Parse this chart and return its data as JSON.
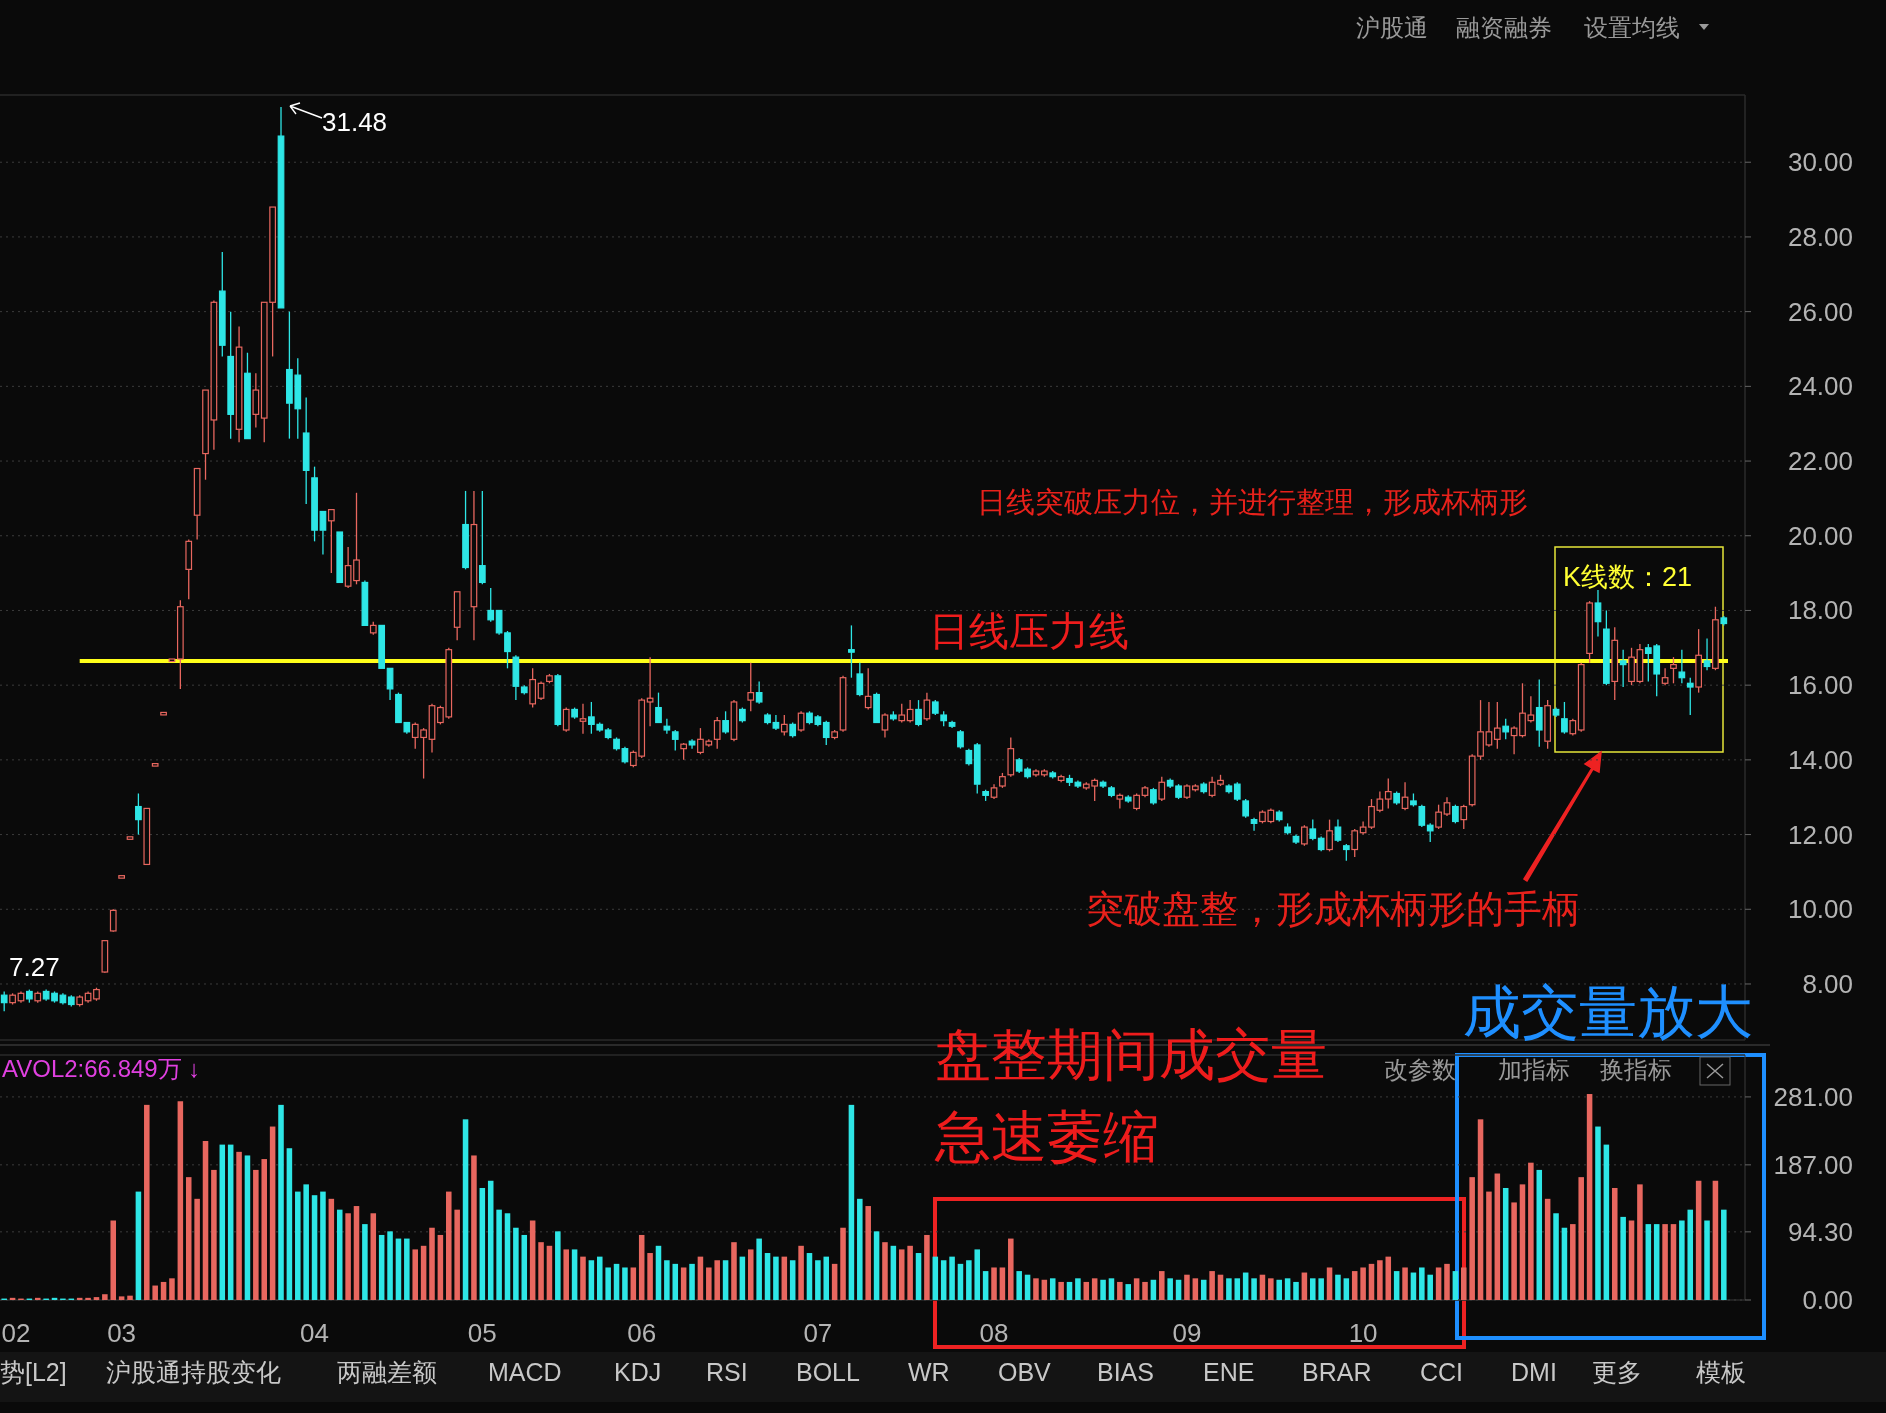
{
  "chart_data": [
    {
      "type": "candlestick",
      "tick_labels": "y",
      "grid": "y",
      "categories": [
        null,
        null,
        null,
        null,
        null,
        null,
        null,
        null,
        null,
        null,
        null,
        null,
        null,
        null,
        null,
        null,
        null,
        null,
        null,
        null,
        null,
        null,
        null,
        null,
        null,
        null,
        null,
        null,
        null,
        null,
        null,
        null,
        null,
        null,
        null,
        null,
        null,
        null,
        null,
        null,
        null,
        null,
        null,
        null,
        null,
        null,
        null,
        null,
        null,
        null,
        null,
        null,
        null,
        null,
        null,
        null,
        null,
        null,
        null,
        null,
        null,
        null,
        null,
        null,
        null,
        null,
        null,
        null,
        null,
        null,
        null,
        null,
        null,
        null,
        null,
        null,
        null,
        null,
        null,
        null,
        null,
        null,
        null,
        null,
        null,
        null,
        null,
        null,
        null,
        null,
        null,
        null,
        null,
        null,
        null,
        null,
        null,
        null,
        null,
        null,
        null,
        null,
        null,
        null,
        null,
        null,
        null,
        null,
        null,
        null,
        null,
        null,
        null,
        null,
        null,
        null,
        null,
        null,
        null,
        null,
        null,
        null,
        null,
        null,
        null,
        null,
        null,
        null,
        null,
        null,
        null,
        null,
        null,
        null,
        null,
        null,
        null,
        null,
        null,
        null,
        null,
        null,
        null,
        null,
        null,
        null,
        null,
        null,
        null,
        null,
        null,
        null,
        null,
        null,
        null,
        null,
        null,
        null,
        null,
        null,
        null,
        null,
        null,
        null,
        null,
        null,
        null,
        null,
        null,
        null,
        null,
        null,
        null,
        null,
        null,
        null,
        null,
        null,
        null,
        null,
        null,
        null,
        null,
        null,
        null,
        null,
        null,
        null,
        null,
        null,
        null,
        null,
        null,
        null,
        null,
        null,
        null,
        null,
        null,
        null,
        null,
        null,
        null,
        null,
        null,
        null
      ],
      "ohlc": [
        [
          7.7,
          7.8,
          7.27,
          7.5
        ],
        [
          7.5,
          7.75,
          7.45,
          7.7
        ],
        [
          7.55,
          7.8,
          7.5,
          7.75
        ],
        [
          7.8,
          7.85,
          7.5,
          7.6
        ],
        [
          7.55,
          7.8,
          7.5,
          7.75
        ],
        [
          7.8,
          7.85,
          7.55,
          7.6
        ],
        [
          7.75,
          7.8,
          7.5,
          7.55
        ],
        [
          7.7,
          7.75,
          7.45,
          7.5
        ],
        [
          7.65,
          7.7,
          7.4,
          7.45
        ],
        [
          7.45,
          7.7,
          7.4,
          7.65
        ],
        [
          7.55,
          7.8,
          7.5,
          7.75
        ],
        [
          7.6,
          7.9,
          7.55,
          7.85
        ],
        [
          8.32,
          9.16,
          8.3,
          9.16
        ],
        [
          9.42,
          10.0,
          9.4,
          9.97
        ],
        [
          10.9,
          10.9,
          10.9,
          10.9
        ],
        [
          11.94,
          11.94,
          11.94,
          11.94
        ],
        [
          12.75,
          13.1,
          12.0,
          12.4
        ],
        [
          11.2,
          12.7,
          11.2,
          12.7
        ],
        [
          13.9,
          13.9,
          13.9,
          13.9
        ],
        [
          15.27,
          15.27,
          15.27,
          15.27
        ],
        [
          16.7,
          16.7,
          16.7,
          16.7
        ],
        [
          16.7,
          18.27,
          15.9,
          18.1
        ],
        [
          19.1,
          19.9,
          18.3,
          19.85
        ],
        [
          20.55,
          21.8,
          19.9,
          21.8
        ],
        [
          22.2,
          23.9,
          21.5,
          23.9
        ],
        [
          23.1,
          26.3,
          22.3,
          26.25
        ],
        [
          26.55,
          27.6,
          24.8,
          25.1
        ],
        [
          24.8,
          26.0,
          22.6,
          23.25
        ],
        [
          22.85,
          25.6,
          22.5,
          25.05
        ],
        [
          24.35,
          24.9,
          22.6,
          22.6
        ],
        [
          23.25,
          24.35,
          22.9,
          23.9
        ],
        [
          23.15,
          26.25,
          22.5,
          26.25
        ],
        [
          26.25,
          28.8,
          24.8,
          28.8
        ],
        [
          30.7,
          31.48,
          26.1,
          26.1
        ],
        [
          24.45,
          26.0,
          22.6,
          23.55
        ],
        [
          24.3,
          24.75,
          22.6,
          23.4
        ],
        [
          22.75,
          23.7,
          20.85,
          21.75
        ],
        [
          21.55,
          21.85,
          19.85,
          20.15
        ],
        [
          20.65,
          20.65,
          19.5,
          20.15
        ],
        [
          20.4,
          20.7,
          19.0,
          20.7
        ],
        [
          20.1,
          20.1,
          18.75,
          18.75
        ],
        [
          18.65,
          19.7,
          18.6,
          19.2
        ],
        [
          18.8,
          21.15,
          18.7,
          19.35
        ],
        [
          18.75,
          18.8,
          17.6,
          17.6
        ],
        [
          17.4,
          17.7,
          17.35,
          17.6
        ],
        [
          17.6,
          17.6,
          16.45,
          16.45
        ],
        [
          16.45,
          16.45,
          15.6,
          15.9
        ],
        [
          15.75,
          15.8,
          15.0,
          15.0
        ],
        [
          15.0,
          15.0,
          14.7,
          14.75
        ],
        [
          14.6,
          15.0,
          14.3,
          14.95
        ],
        [
          14.6,
          14.85,
          13.5,
          14.8
        ],
        [
          14.55,
          15.5,
          14.2,
          15.45
        ],
        [
          15.0,
          15.45,
          14.95,
          15.4
        ],
        [
          15.15,
          17.0,
          15.1,
          16.95
        ],
        [
          17.55,
          18.5,
          17.2,
          18.5
        ],
        [
          20.3,
          21.2,
          19.1,
          19.15
        ],
        [
          18.1,
          21.2,
          17.2,
          20.3
        ],
        [
          19.2,
          21.2,
          18.7,
          18.75
        ],
        [
          18.0,
          18.6,
          17.7,
          17.75
        ],
        [
          18.0,
          18.0,
          17.35,
          17.4
        ],
        [
          17.4,
          17.45,
          16.45,
          16.9
        ],
        [
          16.75,
          16.8,
          15.6,
          15.97
        ],
        [
          15.95,
          16.0,
          15.75,
          15.8
        ],
        [
          15.5,
          16.45,
          15.4,
          16.15
        ],
        [
          15.65,
          16.1,
          15.6,
          16.05
        ],
        [
          16.1,
          16.3,
          16.05,
          16.25
        ],
        [
          16.25,
          16.3,
          14.9,
          14.95
        ],
        [
          14.8,
          15.4,
          14.75,
          15.35
        ],
        [
          15.35,
          15.4,
          15.1,
          15.15
        ],
        [
          15.05,
          15.5,
          14.7,
          15.1
        ],
        [
          15.15,
          15.55,
          14.7,
          14.95
        ],
        [
          14.95,
          15.0,
          14.75,
          14.8
        ],
        [
          14.8,
          14.85,
          14.55,
          14.6
        ],
        [
          14.55,
          14.6,
          14.25,
          14.3
        ],
        [
          14.3,
          14.35,
          13.9,
          13.95
        ],
        [
          13.85,
          14.25,
          13.8,
          14.2
        ],
        [
          14.1,
          15.65,
          14.05,
          15.6
        ],
        [
          15.55,
          16.75,
          14.9,
          15.65
        ],
        [
          15.4,
          15.8,
          15.0,
          15.0
        ],
        [
          14.9,
          15.1,
          14.7,
          14.8
        ],
        [
          14.75,
          14.8,
          14.25,
          14.55
        ],
        [
          14.3,
          14.45,
          14.0,
          14.42
        ],
        [
          14.5,
          14.55,
          14.3,
          14.4
        ],
        [
          14.2,
          14.85,
          14.15,
          14.55
        ],
        [
          14.4,
          14.55,
          14.35,
          14.5
        ],
        [
          14.55,
          15.15,
          14.3,
          15.05
        ],
        [
          15.05,
          15.3,
          14.7,
          14.75
        ],
        [
          14.55,
          15.6,
          14.5,
          15.55
        ],
        [
          15.35,
          15.4,
          15.0,
          15.05
        ],
        [
          15.6,
          16.6,
          15.3,
          15.8
        ],
        [
          15.8,
          16.1,
          15.5,
          15.55
        ],
        [
          15.2,
          15.25,
          14.95,
          15.0
        ],
        [
          15.0,
          15.2,
          14.8,
          14.85
        ],
        [
          14.75,
          15.2,
          14.65,
          14.95
        ],
        [
          14.95,
          15.0,
          14.6,
          14.65
        ],
        [
          14.8,
          15.3,
          14.75,
          15.25
        ],
        [
          15.25,
          15.3,
          14.95,
          15.0
        ],
        [
          15.15,
          15.2,
          14.9,
          14.95
        ],
        [
          15.0,
          15.05,
          14.4,
          14.6
        ],
        [
          14.6,
          14.8,
          14.55,
          14.75
        ],
        [
          14.8,
          16.25,
          14.75,
          16.2
        ],
        [
          16.95,
          17.6,
          16.2,
          16.9
        ],
        [
          16.3,
          16.6,
          15.7,
          15.75
        ],
        [
          15.4,
          16.45,
          15.35,
          15.7
        ],
        [
          15.75,
          15.8,
          15.0,
          15.0
        ],
        [
          14.8,
          15.25,
          14.6,
          15.2
        ],
        [
          15.2,
          15.3,
          15.05,
          15.1
        ],
        [
          15.05,
          15.5,
          15.0,
          15.2
        ],
        [
          15.05,
          15.6,
          15.0,
          15.35
        ],
        [
          15.35,
          15.6,
          14.9,
          14.95
        ],
        [
          15.1,
          15.8,
          15.05,
          15.6
        ],
        [
          15.55,
          15.6,
          15.2,
          15.25
        ],
        [
          15.2,
          15.3,
          14.9,
          15.05
        ],
        [
          15.0,
          15.05,
          14.85,
          14.9
        ],
        [
          14.75,
          14.8,
          14.3,
          14.35
        ],
        [
          14.25,
          14.3,
          13.85,
          13.9
        ],
        [
          14.4,
          14.45,
          13.1,
          13.35
        ],
        [
          13.15,
          13.2,
          12.9,
          13.05
        ],
        [
          13.0,
          13.35,
          12.95,
          13.25
        ],
        [
          13.3,
          13.65,
          13.25,
          13.55
        ],
        [
          13.6,
          14.6,
          13.55,
          14.3
        ],
        [
          14.0,
          14.05,
          13.65,
          13.7
        ],
        [
          13.75,
          13.8,
          13.5,
          13.55
        ],
        [
          13.6,
          13.75,
          13.55,
          13.7
        ],
        [
          13.6,
          13.75,
          13.55,
          13.7
        ],
        [
          13.65,
          13.7,
          13.5,
          13.55
        ],
        [
          13.45,
          13.6,
          13.4,
          13.55
        ],
        [
          13.5,
          13.6,
          13.3,
          13.4
        ],
        [
          13.4,
          13.45,
          13.25,
          13.3
        ],
        [
          13.25,
          13.4,
          13.2,
          13.35
        ],
        [
          13.3,
          13.5,
          12.9,
          13.45
        ],
        [
          13.4,
          13.45,
          13.25,
          13.3
        ],
        [
          13.25,
          13.3,
          13.0,
          13.05
        ],
        [
          12.95,
          13.1,
          12.7,
          13.05
        ],
        [
          13.0,
          13.05,
          12.85,
          12.9
        ],
        [
          12.7,
          13.1,
          12.65,
          13.05
        ],
        [
          13.05,
          13.3,
          13.0,
          13.25
        ],
        [
          13.2,
          13.25,
          12.8,
          12.85
        ],
        [
          12.95,
          13.55,
          12.9,
          13.4
        ],
        [
          13.45,
          13.5,
          13.25,
          13.3
        ],
        [
          13.3,
          13.35,
          12.95,
          13.0
        ],
        [
          13.0,
          13.35,
          12.95,
          13.3
        ],
        [
          13.2,
          13.35,
          13.15,
          13.3
        ],
        [
          13.35,
          13.4,
          13.1,
          13.15
        ],
        [
          13.05,
          13.55,
          13.0,
          13.4
        ],
        [
          13.35,
          13.6,
          13.3,
          13.45
        ],
        [
          13.3,
          13.35,
          13.1,
          13.15
        ],
        [
          13.35,
          13.4,
          12.9,
          12.95
        ],
        [
          12.9,
          12.95,
          12.45,
          12.5
        ],
        [
          12.4,
          12.45,
          12.1,
          12.3
        ],
        [
          12.35,
          12.65,
          12.3,
          12.6
        ],
        [
          12.35,
          12.7,
          12.3,
          12.65
        ],
        [
          12.6,
          12.65,
          12.35,
          12.4
        ],
        [
          12.2,
          12.3,
          12.0,
          12.05
        ],
        [
          11.95,
          12.0,
          11.75,
          11.8
        ],
        [
          11.75,
          12.25,
          11.7,
          12.2
        ],
        [
          12.15,
          12.4,
          11.85,
          11.9
        ],
        [
          11.9,
          11.95,
          11.55,
          11.6
        ],
        [
          11.6,
          12.4,
          11.55,
          12.1
        ],
        [
          12.2,
          12.4,
          11.8,
          11.85
        ],
        [
          11.7,
          11.75,
          11.3,
          11.6
        ],
        [
          11.6,
          12.15,
          11.4,
          12.1
        ],
        [
          12.05,
          12.35,
          12.0,
          12.2
        ],
        [
          12.2,
          12.95,
          12.15,
          12.75
        ],
        [
          12.65,
          13.15,
          12.6,
          12.95
        ],
        [
          12.95,
          13.5,
          12.7,
          13.15
        ],
        [
          13.1,
          13.15,
          12.8,
          12.85
        ],
        [
          12.7,
          13.4,
          12.65,
          13.0
        ],
        [
          12.9,
          13.1,
          12.75,
          12.8
        ],
        [
          12.75,
          12.8,
          12.2,
          12.25
        ],
        [
          12.25,
          12.3,
          11.8,
          12.1
        ],
        [
          12.2,
          12.8,
          12.15,
          12.6
        ],
        [
          12.55,
          13.0,
          12.5,
          12.85
        ],
        [
          12.75,
          12.8,
          12.3,
          12.35
        ],
        [
          12.4,
          12.8,
          12.15,
          12.75
        ],
        [
          12.8,
          14.15,
          12.75,
          14.1
        ],
        [
          14.1,
          15.6,
          14.0,
          14.75
        ],
        [
          14.4,
          15.55,
          14.35,
          14.75
        ],
        [
          14.55,
          15.55,
          14.3,
          14.85
        ],
        [
          14.9,
          15.1,
          14.55,
          14.75
        ],
        [
          14.65,
          14.9,
          14.15,
          14.85
        ],
        [
          14.65,
          16.05,
          14.6,
          15.25
        ],
        [
          15.05,
          15.7,
          15.0,
          15.2
        ],
        [
          15.4,
          16.15,
          14.35,
          14.8
        ],
        [
          14.5,
          15.6,
          14.3,
          15.45
        ],
        [
          15.35,
          15.4,
          15.15,
          15.2
        ],
        [
          15.1,
          15.55,
          14.7,
          14.75
        ],
        [
          14.7,
          15.1,
          14.65,
          15.05
        ],
        [
          14.8,
          16.6,
          14.75,
          16.55
        ],
        [
          16.85,
          18.25,
          16.6,
          18.2
        ],
        [
          18.2,
          18.55,
          17.3,
          17.7
        ],
        [
          17.5,
          18.0,
          16.0,
          16.05
        ],
        [
          16.1,
          17.55,
          15.6,
          17.2
        ],
        [
          16.65,
          16.95,
          15.95,
          16.55
        ],
        [
          16.1,
          17.0,
          16.0,
          16.75
        ],
        [
          16.1,
          17.1,
          16.05,
          16.95
        ],
        [
          17.0,
          17.1,
          16.1,
          16.85
        ],
        [
          17.05,
          17.1,
          15.7,
          16.3
        ],
        [
          16.05,
          16.45,
          16.0,
          16.2
        ],
        [
          16.45,
          16.75,
          16.05,
          16.55
        ],
        [
          16.35,
          16.95,
          16.05,
          16.2
        ],
        [
          16.05,
          16.2,
          15.2,
          15.95
        ],
        [
          15.95,
          17.5,
          15.8,
          16.8
        ],
        [
          16.65,
          17.25,
          16.4,
          16.5
        ],
        [
          16.45,
          18.1,
          16.4,
          17.75
        ],
        [
          17.8,
          17.85,
          17.6,
          17.65
        ]
      ],
      "colors": [
        "#2ee6e6",
        "#e8675f",
        "#e8675f",
        "#2ee6e6",
        "#e8675f",
        "#2ee6e6",
        "#2ee6e6",
        "#2ee6e6",
        "#2ee6e6",
        "#e8675f",
        "#e8675f",
        "#e8675f",
        "#e8675f",
        "#e8675f",
        "#e8675f",
        "#e8675f",
        "#2ee6e6",
        "#e8675f",
        "#e8675f",
        "#e8675f",
        "#e8675f",
        "#e8675f",
        "#e8675f",
        "#e8675f",
        "#e8675f",
        "#e8675f",
        "#2ee6e6",
        "#2ee6e6",
        "#e8675f",
        "#2ee6e6",
        "#e8675f",
        "#e8675f",
        "#e8675f",
        "#2ee6e6",
        "#2ee6e6",
        "#2ee6e6",
        "#2ee6e6",
        "#2ee6e6",
        "#2ee6e6",
        "#e8675f",
        "#2ee6e6",
        "#e8675f",
        "#e8675f",
        "#2ee6e6",
        "#e8675f",
        "#2ee6e6",
        "#2ee6e6",
        "#2ee6e6",
        "#2ee6e6",
        "#e8675f",
        "#e8675f",
        "#e8675f",
        "#e8675f",
        "#e8675f",
        "#e8675f",
        "#2ee6e6",
        "#e8675f",
        "#2ee6e6",
        "#2ee6e6",
        "#2ee6e6",
        "#2ee6e6",
        "#2ee6e6",
        "#2ee6e6",
        "#e8675f",
        "#e8675f",
        "#e8675f",
        "#2ee6e6",
        "#e8675f",
        "#2ee6e6",
        "#e8675f",
        "#2ee6e6",
        "#2ee6e6",
        "#2ee6e6",
        "#2ee6e6",
        "#2ee6e6",
        "#e8675f",
        "#e8675f",
        "#e8675f",
        "#2ee6e6",
        "#2ee6e6",
        "#2ee6e6",
        "#e8675f",
        "#2ee6e6",
        "#e8675f",
        "#e8675f",
        "#e8675f",
        "#2ee6e6",
        "#e8675f",
        "#2ee6e6",
        "#e8675f",
        "#2ee6e6",
        "#2ee6e6",
        "#2ee6e6",
        "#e8675f",
        "#2ee6e6",
        "#e8675f",
        "#2ee6e6",
        "#2ee6e6",
        "#2ee6e6",
        "#e8675f",
        "#e8675f",
        "#2ee6e6",
        "#2ee6e6",
        "#e8675f",
        "#2ee6e6",
        "#e8675f",
        "#2ee6e6",
        "#e8675f",
        "#e8675f",
        "#2ee6e6",
        "#e8675f",
        "#2ee6e6",
        "#2ee6e6",
        "#2ee6e6",
        "#2ee6e6",
        "#2ee6e6",
        "#2ee6e6",
        "#2ee6e6",
        "#e8675f",
        "#e8675f",
        "#e8675f",
        "#2ee6e6",
        "#2ee6e6",
        "#e8675f",
        "#e8675f",
        "#2ee6e6",
        "#e8675f",
        "#2ee6e6",
        "#2ee6e6",
        "#e8675f",
        "#e8675f",
        "#2ee6e6",
        "#2ee6e6",
        "#e8675f",
        "#2ee6e6",
        "#e8675f",
        "#e8675f",
        "#2ee6e6",
        "#e8675f",
        "#2ee6e6",
        "#2ee6e6",
        "#e8675f",
        "#e8675f",
        "#2ee6e6",
        "#e8675f",
        "#e8675f",
        "#2ee6e6",
        "#2ee6e6",
        "#2ee6e6",
        "#2ee6e6",
        "#e8675f",
        "#e8675f",
        "#2ee6e6",
        "#2ee6e6",
        "#2ee6e6",
        "#e8675f",
        "#2ee6e6",
        "#2ee6e6",
        "#e8675f",
        "#2ee6e6",
        "#2ee6e6",
        "#e8675f",
        "#e8675f",
        "#e8675f",
        "#e8675f",
        "#e8675f",
        "#2ee6e6",
        "#e8675f",
        "#2ee6e6",
        "#2ee6e6",
        "#2ee6e6",
        "#e8675f",
        "#e8675f",
        "#2ee6e6",
        "#e8675f",
        "#e8675f",
        "#e8675f",
        "#e8675f",
        "#e8675f",
        "#2ee6e6",
        "#e8675f",
        "#e8675f",
        "#e8675f",
        "#2ee6e6",
        "#e8675f",
        "#2ee6e6",
        "#2ee6e6",
        "#e8675f",
        "#e8675f",
        "#e8675f",
        "#2ee6e6",
        "#2ee6e6",
        "#e8675f",
        "#2ee6e6",
        "#e8675f",
        "#e8675f",
        "#2ee6e6",
        "#2ee6e6",
        "#e8675f",
        "#e8675f",
        "#2ee6e6",
        "#2ee6e6",
        "#e8675f",
        "#2ee6e6",
        "#e8675f",
        "#2ee6e6"
      ],
      "ylim": [
        6.5,
        31.8
      ],
      "yticks": [
        {
          "value": 8,
          "label": "8.00"
        },
        {
          "value": 10,
          "label": "10.00"
        },
        {
          "value": 12,
          "label": "12.00"
        },
        {
          "value": 14,
          "label": "14.00"
        },
        {
          "value": 16,
          "label": "16.00"
        },
        {
          "value": 18,
          "label": "18.00"
        },
        {
          "value": 20,
          "label": "20.00"
        },
        {
          "value": 22,
          "label": "22.00"
        },
        {
          "value": 24,
          "label": "24.00"
        },
        {
          "value": 26,
          "label": "26.00"
        },
        {
          "value": 28,
          "label": "28.00"
        },
        {
          "value": 30,
          "label": "30.00"
        }
      ],
      "ref_lines": [
        {
          "axis": "y",
          "value": 16.65,
          "label": "日线压力线",
          "color": "#ffff1a"
        }
      ],
      "annotations": [
        "31.48",
        "7.27",
        "日线突破压力位，并进行整理，形成杯柄形",
        "K线数：21",
        "突破盘整，形成杯柄形的手柄",
        "沪股通",
        "融资融券",
        "设置均线"
      ]
    },
    {
      "type": "bar",
      "grid": "y",
      "categories": [
        "02",
        null,
        null,
        null,
        null,
        null,
        null,
        null,
        null,
        null,
        null,
        null,
        null,
        null,
        "03",
        null,
        null,
        null,
        null,
        null,
        null,
        null,
        null,
        null,
        null,
        null,
        null,
        null,
        null,
        null,
        null,
        null,
        null,
        null,
        null,
        null,
        null,
        "04",
        null,
        null,
        null,
        null,
        null,
        null,
        null,
        null,
        null,
        null,
        null,
        null,
        null,
        null,
        null,
        null,
        null,
        null,
        null,
        "05",
        null,
        null,
        null,
        null,
        null,
        null,
        null,
        null,
        null,
        null,
        null,
        null,
        null,
        null,
        null,
        null,
        null,
        null,
        "06",
        null,
        null,
        null,
        null,
        null,
        null,
        null,
        null,
        null,
        null,
        null,
        null,
        null,
        null,
        null,
        null,
        null,
        null,
        null,
        null,
        "07",
        null,
        null,
        null,
        null,
        null,
        null,
        null,
        null,
        null,
        null,
        null,
        null,
        null,
        null,
        null,
        null,
        null,
        null,
        null,
        null,
        "08",
        null,
        null,
        null,
        null,
        null,
        null,
        null,
        null,
        null,
        null,
        null,
        null,
        null,
        null,
        null,
        null,
        null,
        null,
        null,
        null,
        null,
        null,
        "09",
        null,
        null,
        null,
        null,
        null,
        null,
        null,
        null,
        null,
        null,
        null,
        null,
        null,
        null,
        null,
        null,
        null,
        null,
        null,
        null,
        "10",
        null,
        null,
        null,
        null,
        null,
        null,
        null,
        null,
        null,
        null,
        null,
        null,
        null,
        null,
        null,
        null,
        null,
        null,
        null,
        null,
        null,
        null,
        null,
        null,
        null,
        null,
        null,
        null,
        null,
        null,
        null,
        null,
        null,
        null,
        null,
        null,
        null,
        null,
        null,
        null,
        null,
        null,
        null
      ],
      "values": [
        2,
        3,
        2,
        2,
        3,
        2,
        3,
        2,
        2,
        3,
        3,
        4,
        8,
        110,
        5,
        6,
        150,
        270,
        20,
        25,
        30,
        275,
        170,
        140,
        220,
        180,
        215,
        215,
        205,
        200,
        180,
        195,
        240,
        270,
        210,
        150,
        160,
        145,
        150,
        140,
        125,
        120,
        130,
        105,
        120,
        90,
        95,
        85,
        85,
        70,
        75,
        100,
        90,
        150,
        125,
        250,
        200,
        155,
        165,
        125,
        120,
        100,
        90,
        110,
        80,
        75,
        95,
        70,
        70,
        60,
        55,
        60,
        45,
        50,
        45,
        45,
        90,
        65,
        75,
        55,
        50,
        45,
        50,
        60,
        45,
        55,
        55,
        80,
        60,
        70,
        85,
        65,
        60,
        60,
        55,
        75,
        65,
        55,
        60,
        50,
        100,
        270,
        140,
        130,
        95,
        80,
        75,
        70,
        75,
        65,
        90,
        60,
        55,
        60,
        50,
        55,
        70,
        40,
        45,
        45,
        85,
        40,
        35,
        30,
        28,
        30,
        25,
        25,
        30,
        25,
        30,
        28,
        30,
        25,
        22,
        30,
        25,
        28,
        40,
        30,
        28,
        35,
        30,
        28,
        40,
        35,
        30,
        30,
        38,
        30,
        35,
        30,
        28,
        30,
        25,
        38,
        30,
        30,
        45,
        35,
        30,
        40,
        45,
        50,
        55,
        60,
        40,
        45,
        38,
        45,
        35,
        45,
        50,
        40,
        45,
        170,
        250,
        150,
        175,
        155,
        135,
        160,
        190,
        180,
        140,
        120,
        100,
        105,
        170,
        285,
        240,
        215,
        155,
        115,
        110,
        160,
        105,
        105,
        105,
        105,
        110,
        125,
        165,
        110,
        165,
        125
      ],
      "colors": [
        "#2ee6e6",
        "#e8675f",
        "#e8675f",
        "#2ee6e6",
        "#e8675f",
        "#2ee6e6",
        "#2ee6e6",
        "#2ee6e6",
        "#2ee6e6",
        "#e8675f",
        "#e8675f",
        "#e8675f",
        "#e8675f",
        "#e8675f",
        "#e8675f",
        "#e8675f",
        "#2ee6e6",
        "#e8675f",
        "#e8675f",
        "#e8675f",
        "#e8675f",
        "#e8675f",
        "#e8675f",
        "#e8675f",
        "#e8675f",
        "#e8675f",
        "#2ee6e6",
        "#2ee6e6",
        "#e8675f",
        "#2ee6e6",
        "#e8675f",
        "#e8675f",
        "#e8675f",
        "#2ee6e6",
        "#2ee6e6",
        "#2ee6e6",
        "#2ee6e6",
        "#2ee6e6",
        "#2ee6e6",
        "#e8675f",
        "#2ee6e6",
        "#e8675f",
        "#e8675f",
        "#2ee6e6",
        "#e8675f",
        "#2ee6e6",
        "#2ee6e6",
        "#2ee6e6",
        "#2ee6e6",
        "#e8675f",
        "#e8675f",
        "#e8675f",
        "#e8675f",
        "#e8675f",
        "#e8675f",
        "#2ee6e6",
        "#e8675f",
        "#2ee6e6",
        "#2ee6e6",
        "#2ee6e6",
        "#2ee6e6",
        "#2ee6e6",
        "#2ee6e6",
        "#e8675f",
        "#e8675f",
        "#e8675f",
        "#2ee6e6",
        "#e8675f",
        "#2ee6e6",
        "#e8675f",
        "#2ee6e6",
        "#2ee6e6",
        "#2ee6e6",
        "#2ee6e6",
        "#2ee6e6",
        "#e8675f",
        "#e8675f",
        "#e8675f",
        "#2ee6e6",
        "#2ee6e6",
        "#2ee6e6",
        "#e8675f",
        "#2ee6e6",
        "#e8675f",
        "#e8675f",
        "#e8675f",
        "#2ee6e6",
        "#e8675f",
        "#2ee6e6",
        "#e8675f",
        "#2ee6e6",
        "#2ee6e6",
        "#2ee6e6",
        "#e8675f",
        "#2ee6e6",
        "#e8675f",
        "#2ee6e6",
        "#2ee6e6",
        "#2ee6e6",
        "#e8675f",
        "#e8675f",
        "#2ee6e6",
        "#2ee6e6",
        "#e8675f",
        "#2ee6e6",
        "#e8675f",
        "#2ee6e6",
        "#e8675f",
        "#e8675f",
        "#2ee6e6",
        "#e8675f",
        "#2ee6e6",
        "#2ee6e6",
        "#2ee6e6",
        "#2ee6e6",
        "#2ee6e6",
        "#2ee6e6",
        "#2ee6e6",
        "#e8675f",
        "#e8675f",
        "#e8675f",
        "#2ee6e6",
        "#2ee6e6",
        "#e8675f",
        "#e8675f",
        "#2ee6e6",
        "#e8675f",
        "#2ee6e6",
        "#2ee6e6",
        "#e8675f",
        "#e8675f",
        "#2ee6e6",
        "#2ee6e6",
        "#e8675f",
        "#2ee6e6",
        "#e8675f",
        "#e8675f",
        "#2ee6e6",
        "#e8675f",
        "#2ee6e6",
        "#2ee6e6",
        "#e8675f",
        "#e8675f",
        "#2ee6e6",
        "#e8675f",
        "#e8675f",
        "#2ee6e6",
        "#2ee6e6",
        "#2ee6e6",
        "#2ee6e6",
        "#e8675f",
        "#e8675f",
        "#2ee6e6",
        "#2ee6e6",
        "#2ee6e6",
        "#e8675f",
        "#2ee6e6",
        "#2ee6e6",
        "#e8675f",
        "#2ee6e6",
        "#2ee6e6",
        "#e8675f",
        "#e8675f",
        "#e8675f",
        "#e8675f",
        "#e8675f",
        "#2ee6e6",
        "#e8675f",
        "#2ee6e6",
        "#2ee6e6",
        "#2ee6e6",
        "#e8675f",
        "#e8675f",
        "#2ee6e6",
        "#e8675f",
        "#e8675f",
        "#e8675f",
        "#e8675f",
        "#e8675f",
        "#2ee6e6",
        "#e8675f",
        "#e8675f",
        "#e8675f",
        "#2ee6e6",
        "#e8675f",
        "#2ee6e6",
        "#2ee6e6",
        "#e8675f",
        "#e8675f",
        "#e8675f",
        "#2ee6e6",
        "#2ee6e6",
        "#e8675f",
        "#2ee6e6",
        "#e8675f",
        "#e8675f",
        "#2ee6e6",
        "#2ee6e6",
        "#e8675f",
        "#e8675f",
        "#2ee6e6",
        "#2ee6e6",
        "#e8675f",
        "#2ee6e6",
        "#e8675f",
        "#2ee6e6"
      ],
      "ylim": [
        0,
        339
      ],
      "yticks": [
        {
          "value": 0,
          "label": "0.00"
        },
        {
          "value": 94.3,
          "label": "94.30"
        },
        {
          "value": 187,
          "label": "187.00"
        },
        {
          "value": 281,
          "label": "281.00"
        }
      ],
      "annotations": [
        "AVOL2:66.849万 ↓",
        "盘整期间成交量",
        "急速萎缩",
        "成交量放大",
        "改参数",
        "加指标",
        "换指标",
        "势[L2]",
        "沪股通持股变化",
        "两融差额",
        "MACD",
        "KDJ",
        "RSI",
        "BOLL",
        "WR",
        "OBV",
        "BIAS",
        "ENE",
        "BRAR",
        "CCI",
        "DMI",
        "更多",
        "模板"
      ]
    }
  ]
}
